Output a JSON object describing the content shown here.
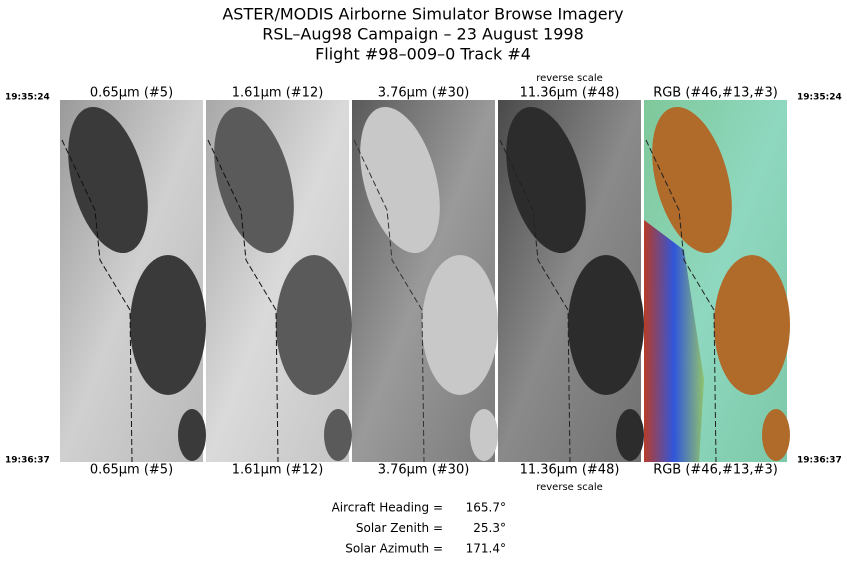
{
  "header": {
    "title_lines": [
      "ASTER/MODIS Airborne Simulator Browse Imagery",
      "RSL–Aug98 Campaign – 23 August 1998",
      "Flight #98–009–0 Track #4"
    ]
  },
  "times": {
    "start": "19:35:24",
    "end": "19:36:37"
  },
  "panels": [
    {
      "label": "0.65µm (#5)"
    },
    {
      "label": "1.61µm (#12)"
    },
    {
      "label": "3.76µm (#30)"
    },
    {
      "label": "11.36µm (#48)",
      "note": "reverse scale"
    },
    {
      "label": "RGB (#46,#13,#3)"
    }
  ],
  "footer": {
    "rows": [
      {
        "label": "Aircraft Heading =",
        "value": "165.7°"
      },
      {
        "label": "Solar Zenith =",
        "value": "25.3°"
      },
      {
        "label": "Solar Azimuth =",
        "value": "171.4°"
      }
    ]
  }
}
